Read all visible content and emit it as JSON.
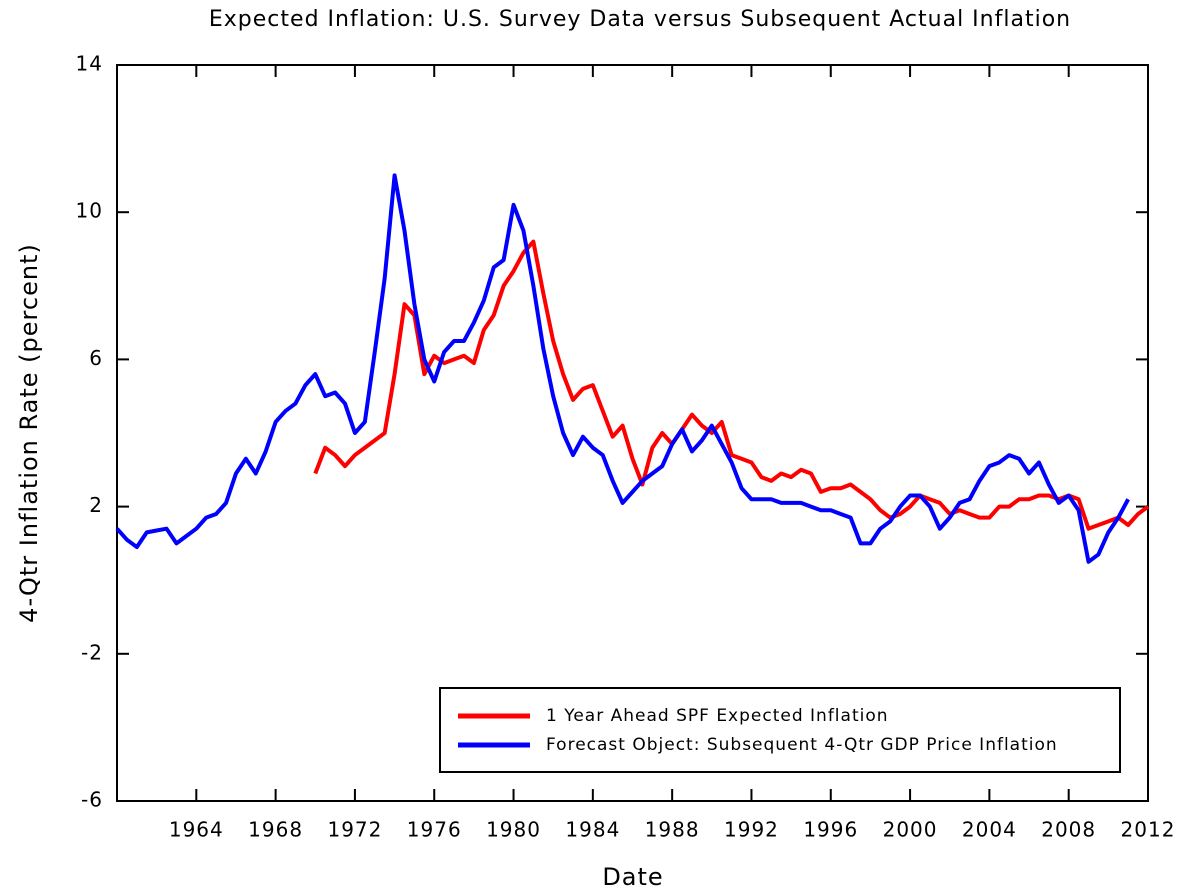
{
  "chart_data": {
    "type": "line",
    "title": "Expected Inflation: U.S. Survey Data versus Subsequent Actual Inflation",
    "x_label": "Date",
    "y_label": "4-Qtr Inflation Rate (percent)",
    "x": [
      1960,
      1960.5,
      1961,
      1961.5,
      1962,
      1962.5,
      1963,
      1963.5,
      1964,
      1964.5,
      1965,
      1965.5,
      1966,
      1966.5,
      1967,
      1967.5,
      1968,
      1968.5,
      1969,
      1969.5,
      1970,
      1970.5,
      1971,
      1971.5,
      1972,
      1972.5,
      1973,
      1973.5,
      1974,
      1974.5,
      1975,
      1975.5,
      1976,
      1976.5,
      1977,
      1977.5,
      1978,
      1978.5,
      1979,
      1979.5,
      1980,
      1980.5,
      1981,
      1981.5,
      1982,
      1982.5,
      1983,
      1983.5,
      1984,
      1984.5,
      1985,
      1985.5,
      1986,
      1986.5,
      1987,
      1987.5,
      1988,
      1988.5,
      1989,
      1989.5,
      1990,
      1990.5,
      1991,
      1991.5,
      1992,
      1992.5,
      1993,
      1993.5,
      1994,
      1994.5,
      1995,
      1995.5,
      1996,
      1996.5,
      1997,
      1997.5,
      1998,
      1998.5,
      1999,
      1999.5,
      2000,
      2000.5,
      2001,
      2001.5,
      2002,
      2002.5,
      2003,
      2003.5,
      2004,
      2004.5,
      2005,
      2005.5,
      2006,
      2006.5,
      2007,
      2007.5,
      2008,
      2008.5,
      2009,
      2009.5,
      2010,
      2010.5,
      2011,
      2011.5,
      2012
    ],
    "series": [
      {
        "name": "1 Year Ahead SPF Expected Inflation",
        "color": "#ff0000",
        "values": [
          null,
          null,
          null,
          null,
          null,
          null,
          null,
          null,
          null,
          null,
          null,
          null,
          null,
          null,
          null,
          null,
          null,
          null,
          null,
          null,
          2.9,
          3.6,
          3.4,
          3.1,
          3.4,
          3.6,
          3.8,
          4.0,
          5.6,
          7.5,
          7.2,
          5.6,
          6.1,
          5.9,
          6.0,
          6.1,
          5.9,
          6.8,
          7.2,
          8.0,
          8.4,
          8.9,
          9.2,
          7.8,
          6.5,
          5.6,
          4.9,
          5.2,
          5.3,
          4.6,
          3.9,
          4.2,
          3.3,
          2.6,
          3.6,
          4.0,
          3.7,
          4.1,
          4.5,
          4.2,
          4.0,
          4.3,
          3.4,
          3.3,
          3.2,
          2.8,
          2.7,
          2.9,
          2.8,
          3.0,
          2.9,
          2.4,
          2.5,
          2.5,
          2.6,
          2.4,
          2.2,
          1.9,
          1.7,
          1.8,
          2.0,
          2.3,
          2.2,
          2.1,
          1.8,
          1.9,
          1.8,
          1.7,
          1.7,
          2.0,
          2.0,
          2.2,
          2.2,
          2.3,
          2.3,
          2.2,
          2.3,
          2.2,
          1.4,
          1.5,
          1.6,
          1.7,
          1.5,
          1.8,
          2.0
        ]
      },
      {
        "name": "Forecast Object: Subsequent 4-Qtr GDP Price Inflation",
        "color": "#0000ff",
        "values": [
          1.4,
          1.1,
          0.9,
          1.3,
          1.35,
          1.4,
          1.0,
          1.2,
          1.4,
          1.7,
          1.8,
          2.1,
          2.9,
          3.3,
          2.9,
          3.5,
          4.3,
          4.6,
          4.8,
          5.3,
          5.6,
          5.0,
          5.1,
          4.8,
          4.0,
          4.3,
          6.2,
          8.2,
          11.0,
          9.5,
          7.5,
          6.0,
          5.4,
          6.2,
          6.5,
          6.5,
          7.0,
          7.6,
          8.5,
          8.7,
          10.2,
          9.5,
          8.0,
          6.3,
          5.0,
          4.0,
          3.4,
          3.9,
          3.6,
          3.4,
          2.7,
          2.1,
          2.4,
          2.7,
          2.9,
          3.1,
          3.7,
          4.1,
          3.5,
          3.8,
          4.2,
          3.7,
          3.2,
          2.5,
          2.2,
          2.2,
          2.2,
          2.1,
          2.1,
          2.1,
          2.0,
          1.9,
          1.9,
          1.8,
          1.7,
          1.0,
          1.0,
          1.4,
          1.6,
          2.0,
          2.3,
          2.3,
          2.0,
          1.4,
          1.7,
          2.1,
          2.2,
          2.7,
          3.1,
          3.2,
          3.4,
          3.3,
          2.9,
          3.2,
          2.6,
          2.1,
          2.3,
          1.9,
          0.5,
          0.7,
          1.3,
          1.7,
          2.2,
          null,
          null
        ]
      }
    ],
    "xlim": [
      1960,
      2012
    ],
    "xticks": [
      1964,
      1968,
      1972,
      1976,
      1980,
      1984,
      1988,
      1992,
      1996,
      2000,
      2004,
      2008,
      2012
    ],
    "ylim": [
      -6,
      14
    ],
    "yticks": [
      -6,
      -2,
      2,
      6,
      10,
      14
    ],
    "grid": false,
    "legend": "lower right"
  }
}
